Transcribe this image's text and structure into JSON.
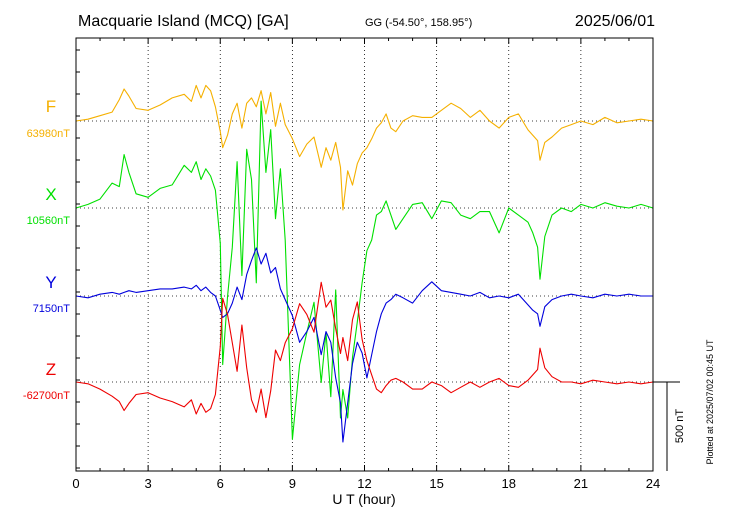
{
  "header": {
    "station": "Macquarie Island (MCQ)  [GA]",
    "coords": "GG (-54.50°, 158.95°)",
    "date": "2025/06/01"
  },
  "footer_note": "Plotted at 2025/07/02 00:45 UT",
  "colors": {
    "F": "#f5b000",
    "X": "#00e000",
    "Y": "#0000dd",
    "Z": "#ee0000",
    "axis": "#000000"
  },
  "chart_data": {
    "type": "line",
    "title": "Macquarie Island (MCQ)  [GA]",
    "xlabel": "U T (hour)",
    "ylabel": "",
    "xlim": [
      0,
      24
    ],
    "x_ticks": [
      "0",
      "3",
      "6",
      "9",
      "12",
      "15",
      "18",
      "21",
      "24"
    ],
    "scale_label": "500 nT",
    "scale_nT": 500,
    "grid": true,
    "series": [
      {
        "name": "F",
        "baseline_label": "63980nT",
        "x": [
          0,
          0.5,
          1,
          1.5,
          1.8,
          2,
          2.2,
          2.5,
          3,
          3.5,
          4,
          4.5,
          4.8,
          5,
          5.2,
          5.4,
          5.6,
          5.8,
          6,
          6.1,
          6.3,
          6.5,
          6.7,
          6.9,
          7.1,
          7.3,
          7.5,
          7.7,
          7.9,
          8.1,
          8.3,
          8.5,
          8.7,
          9,
          9.3,
          9.6,
          9.9,
          10.2,
          10.4,
          10.6,
          10.8,
          11,
          11.1,
          11.3,
          11.5,
          11.7,
          11.9,
          12.1,
          12.3,
          12.5,
          12.7,
          12.9,
          13.1,
          13.3,
          13.6,
          14,
          14.4,
          14.8,
          15.2,
          15.6,
          16,
          16.4,
          16.8,
          17.2,
          17.6,
          18,
          18.4,
          18.8,
          19,
          19.2,
          19.3,
          19.5,
          19.8,
          20.2,
          20.6,
          21,
          21.5,
          22,
          22.5,
          23,
          23.5,
          24
        ],
        "values": [
          0,
          10,
          30,
          50,
          120,
          180,
          140,
          70,
          60,
          90,
          130,
          150,
          110,
          200,
          130,
          200,
          170,
          80,
          -60,
          -150,
          -80,
          40,
          100,
          -40,
          100,
          130,
          80,
          170,
          40,
          160,
          -30,
          100,
          -20,
          -100,
          -200,
          -130,
          -90,
          -260,
          -150,
          -220,
          -120,
          -260,
          -500,
          -280,
          -360,
          -240,
          -180,
          -150,
          -100,
          -40,
          -10,
          40,
          -40,
          -60,
          0,
          30,
          20,
          20,
          60,
          100,
          70,
          20,
          60,
          0,
          -40,
          20,
          40,
          -50,
          -80,
          -110,
          -220,
          -120,
          -90,
          -40,
          -20,
          0,
          -20,
          20,
          -10,
          0,
          10,
          0
        ]
      },
      {
        "name": "X",
        "baseline_label": "10560nT",
        "x": [
          0,
          0.5,
          1,
          1.5,
          1.8,
          2,
          2.2,
          2.5,
          3,
          3.5,
          4,
          4.5,
          4.8,
          5,
          5.2,
          5.4,
          5.6,
          5.8,
          6,
          6.1,
          6.3,
          6.5,
          6.7,
          6.9,
          7.1,
          7.3,
          7.5,
          7.7,
          7.9,
          8.1,
          8.3,
          8.5,
          8.7,
          9,
          9.3,
          9.6,
          9.9,
          10.2,
          10.4,
          10.6,
          10.8,
          11,
          11.1,
          11.3,
          11.5,
          11.7,
          11.9,
          12.1,
          12.3,
          12.5,
          12.7,
          12.9,
          13.1,
          13.3,
          13.6,
          14,
          14.4,
          14.8,
          15.2,
          15.6,
          16,
          16.4,
          16.8,
          17.2,
          17.6,
          18,
          18.4,
          18.8,
          19,
          19.2,
          19.3,
          19.5,
          19.8,
          20.2,
          20.6,
          21,
          21.5,
          22,
          22.5,
          23,
          23.5,
          24
        ],
        "values": [
          0,
          20,
          50,
          140,
          120,
          300,
          200,
          80,
          60,
          110,
          130,
          240,
          200,
          260,
          160,
          220,
          180,
          100,
          -200,
          -880,
          -500,
          -220,
          260,
          -380,
          330,
          160,
          -420,
          600,
          200,
          440,
          -60,
          220,
          -180,
          -1300,
          -880,
          -700,
          -530,
          -980,
          -700,
          -1060,
          -460,
          -1180,
          -1020,
          -1180,
          -840,
          -640,
          -420,
          -240,
          -180,
          -40,
          -20,
          40,
          -40,
          -120,
          -60,
          20,
          30,
          -60,
          40,
          30,
          -40,
          -60,
          -20,
          -20,
          -140,
          0,
          -40,
          -80,
          -140,
          -220,
          -400,
          -160,
          -40,
          0,
          -20,
          20,
          0,
          30,
          10,
          0,
          20,
          0
        ]
      },
      {
        "name": "Y",
        "baseline_label": "7150nT",
        "x": [
          0,
          0.5,
          1,
          1.5,
          1.8,
          2,
          2.2,
          2.5,
          3,
          3.5,
          4,
          4.5,
          4.8,
          5,
          5.2,
          5.4,
          5.6,
          5.8,
          6,
          6.1,
          6.3,
          6.5,
          6.7,
          6.9,
          7.1,
          7.3,
          7.5,
          7.7,
          7.9,
          8.1,
          8.3,
          8.5,
          8.7,
          9,
          9.3,
          9.6,
          9.9,
          10.2,
          10.4,
          10.6,
          10.8,
          11,
          11.1,
          11.3,
          11.5,
          11.7,
          11.9,
          12.1,
          12.3,
          12.5,
          12.7,
          12.9,
          13.1,
          13.3,
          13.6,
          14,
          14.4,
          14.8,
          15.2,
          15.6,
          16,
          16.4,
          16.8,
          17.2,
          17.6,
          18,
          18.4,
          18.8,
          19,
          19.2,
          19.3,
          19.5,
          19.8,
          20.2,
          20.6,
          21,
          21.5,
          22,
          22.5,
          23,
          23.5,
          24
        ],
        "values": [
          0,
          -10,
          10,
          20,
          10,
          20,
          30,
          20,
          30,
          40,
          40,
          50,
          40,
          60,
          30,
          50,
          20,
          0,
          -80,
          -120,
          -100,
          -40,
          50,
          -20,
          120,
          200,
          270,
          180,
          240,
          130,
          160,
          40,
          -20,
          -110,
          -260,
          -200,
          -120,
          -330,
          -200,
          -260,
          -460,
          -600,
          -820,
          -600,
          -380,
          -260,
          -320,
          -460,
          -330,
          -200,
          -100,
          -40,
          -20,
          10,
          -10,
          -40,
          30,
          80,
          30,
          20,
          10,
          0,
          20,
          -10,
          0,
          -10,
          10,
          -50,
          -80,
          -100,
          -170,
          -60,
          -20,
          0,
          10,
          0,
          -10,
          10,
          0,
          10,
          0,
          0
        ]
      },
      {
        "name": "Z",
        "baseline_label": "-62700nT",
        "x": [
          0,
          0.5,
          1,
          1.5,
          1.8,
          2,
          2.2,
          2.5,
          3,
          3.5,
          4,
          4.5,
          4.8,
          5,
          5.2,
          5.4,
          5.6,
          5.8,
          6,
          6.1,
          6.3,
          6.5,
          6.7,
          6.9,
          7.1,
          7.3,
          7.5,
          7.7,
          7.9,
          8.1,
          8.3,
          8.5,
          8.7,
          9,
          9.3,
          9.6,
          9.9,
          10.2,
          10.4,
          10.6,
          10.8,
          11,
          11.1,
          11.3,
          11.5,
          11.7,
          11.9,
          12.1,
          12.3,
          12.5,
          12.7,
          12.9,
          13.1,
          13.3,
          13.6,
          14,
          14.4,
          14.8,
          15.2,
          15.6,
          16,
          16.4,
          16.8,
          17.2,
          17.6,
          18,
          18.4,
          18.8,
          19,
          19.2,
          19.3,
          19.5,
          19.8,
          20.2,
          20.6,
          21,
          21.5,
          22,
          22.5,
          23,
          23.5,
          24
        ],
        "values": [
          0,
          -10,
          -40,
          -80,
          -110,
          -160,
          -120,
          -70,
          -60,
          -90,
          -110,
          -140,
          -100,
          -180,
          -120,
          -170,
          -150,
          -70,
          200,
          470,
          380,
          220,
          60,
          320,
          80,
          -100,
          -170,
          -40,
          -200,
          -50,
          180,
          120,
          220,
          300,
          440,
          380,
          280,
          560,
          420,
          460,
          300,
          160,
          250,
          120,
          350,
          450,
          240,
          120,
          40,
          -40,
          -60,
          -20,
          10,
          20,
          0,
          -40,
          -40,
          0,
          -20,
          -60,
          -30,
          0,
          -30,
          0,
          20,
          -20,
          -30,
          10,
          40,
          70,
          190,
          80,
          30,
          0,
          0,
          -10,
          10,
          0,
          -10,
          0,
          -10,
          0
        ]
      }
    ]
  }
}
